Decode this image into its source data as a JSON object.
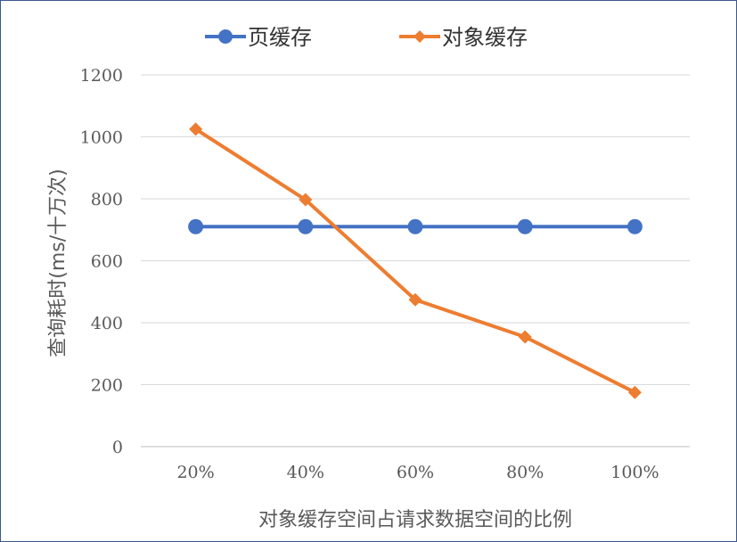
{
  "chart_data": {
    "type": "line",
    "title": "",
    "xlabel": "对象缓存空间占请求数据空间的比例",
    "ylabel": "查询耗时(ms/十万次)",
    "categories": [
      "20%",
      "40%",
      "60%",
      "80%",
      "100%"
    ],
    "ylim": [
      0,
      1200
    ],
    "yticks": [
      "0",
      "200",
      "400",
      "600",
      "800",
      "1000",
      "1200"
    ],
    "grid": true,
    "legend_position": "top",
    "series": [
      {
        "name": "页缓存",
        "values": [
          710,
          710,
          710,
          710,
          710
        ],
        "color": "#4472c4",
        "marker": "circle"
      },
      {
        "name": "对象缓存",
        "values": [
          1025,
          797,
          474,
          354,
          175
        ],
        "color": "#ed7d31",
        "marker": "diamond"
      }
    ]
  }
}
